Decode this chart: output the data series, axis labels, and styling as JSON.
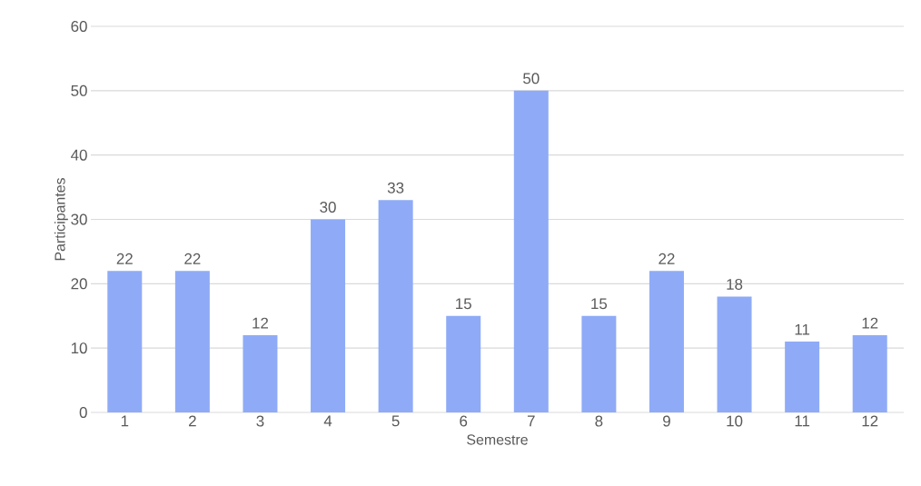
{
  "chart_data": {
    "type": "bar",
    "xlabel": "Semestre",
    "ylabel": "Participantes",
    "categories": [
      "1",
      "2",
      "3",
      "4",
      "5",
      "6",
      "7",
      "8",
      "9",
      "10",
      "11",
      "12"
    ],
    "values": [
      22,
      22,
      12,
      30,
      33,
      15,
      50,
      15,
      22,
      18,
      11,
      12
    ],
    "color": "#8fabf7",
    "ylim": [
      0,
      60
    ],
    "yticks": [
      0,
      10,
      20,
      30,
      40,
      50,
      60
    ],
    "grid": "y",
    "data_labels": true
  }
}
